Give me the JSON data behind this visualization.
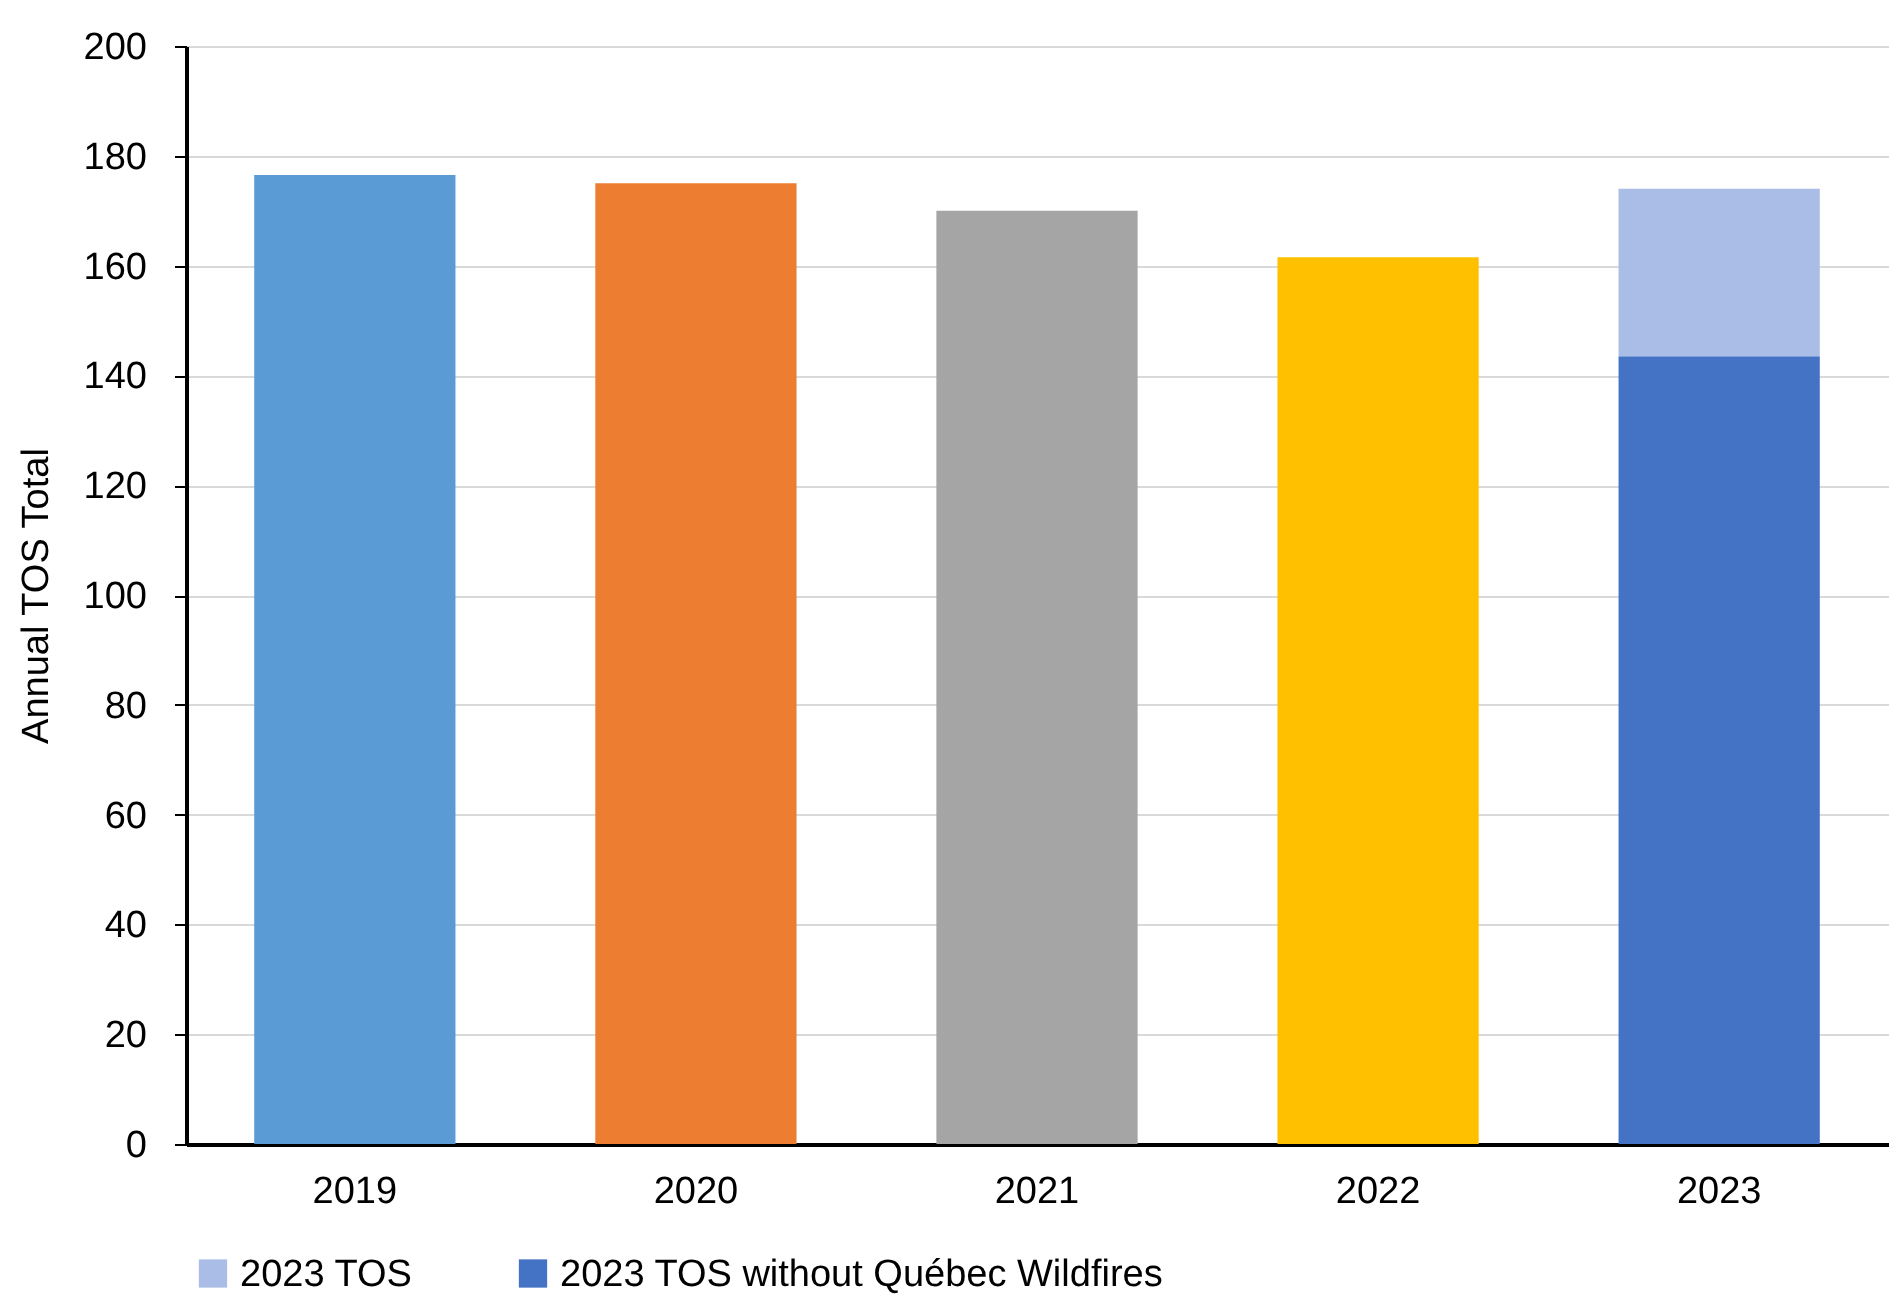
{
  "chart_data": {
    "type": "bar",
    "ylabel": "Annual TOS Total",
    "categories": [
      "2019",
      "2020",
      "2021",
      "2022",
      "2023"
    ],
    "stacked": true,
    "series": [
      {
        "colors": [
          "#5b9bd5",
          "#ed7d31",
          "#a5a5a5",
          "#ffc000",
          null
        ],
        "values": [
          176.5,
          175,
          170,
          161.5,
          null
        ]
      },
      {
        "name": "2023 TOS without Québec Wildfires",
        "color": "#4472c4",
        "values": [
          null,
          null,
          null,
          null,
          143.5
        ]
      },
      {
        "name": "2023 TOS",
        "color": "#a9bde6",
        "values": [
          null,
          null,
          null,
          null,
          30.5
        ]
      }
    ],
    "ylim": [
      0,
      200
    ],
    "yticks": [
      0,
      20,
      40,
      60,
      80,
      100,
      120,
      140,
      160,
      180,
      200
    ],
    "grid": "y",
    "legend": "bottom"
  }
}
